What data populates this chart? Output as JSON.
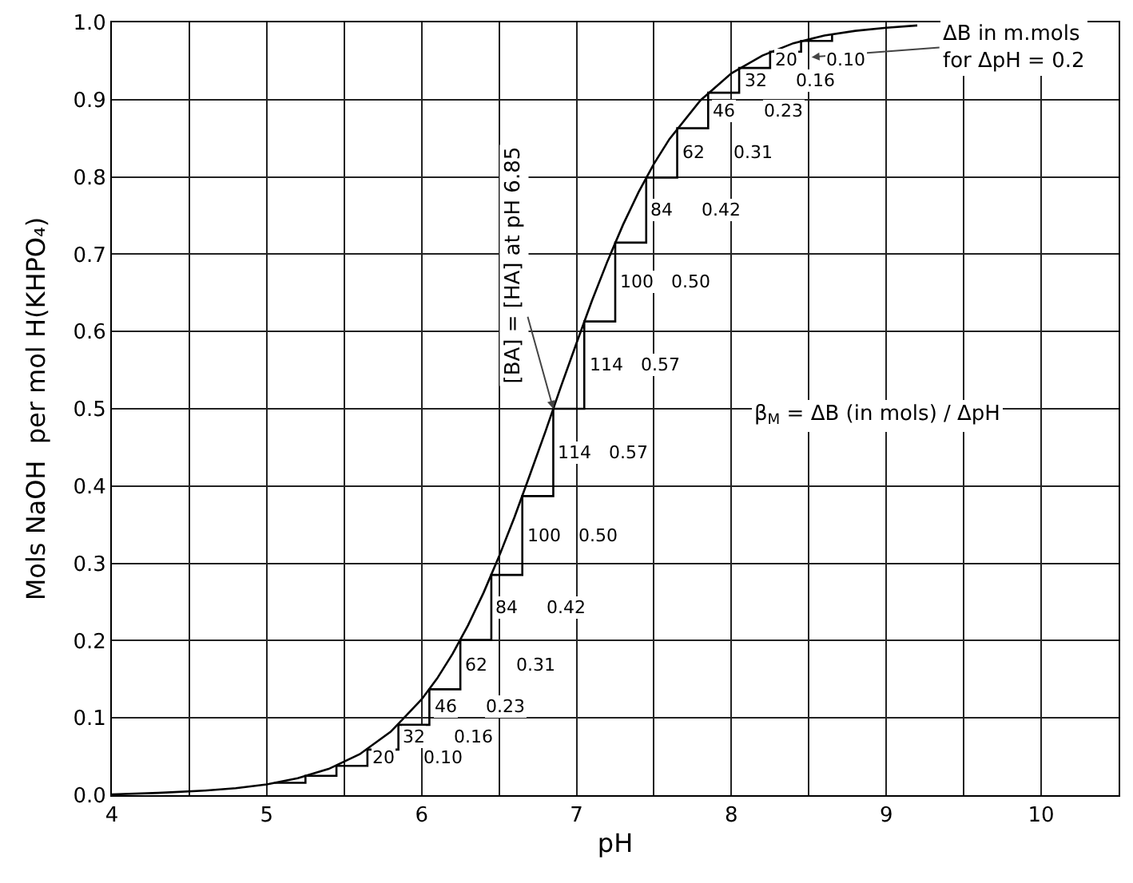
{
  "chart_data": {
    "type": "line",
    "xlabel": "pH",
    "ylabel": "Mols NaOH  per mol H(KHPO₄)",
    "xlim": [
      4,
      10.5
    ],
    "ylim": [
      0,
      1
    ],
    "xticks": [
      4,
      {
        "value": 4.5,
        "label": null
      },
      5,
      {
        "value": 5.5,
        "label": null
      },
      6,
      {
        "value": 6.5,
        "label": null
      },
      7,
      {
        "value": 7.5,
        "label": null
      },
      8,
      {
        "value": 8.5,
        "label": null
      },
      9,
      {
        "value": 9.5,
        "label": null
      },
      10
    ],
    "yticks": [
      {
        "value": 0,
        "label": "0.0"
      },
      0.1,
      0.2,
      0.3,
      0.4,
      0.5,
      0.6,
      0.7,
      0.8,
      0.9,
      {
        "value": 1,
        "label": "1.0"
      }
    ],
    "grid": true,
    "line_style": "solid",
    "marker": "none",
    "series": [
      {
        "type": "line",
        "color": "#000000",
        "x": [
          4.0,
          4.3,
          4.6,
          4.8,
          5.0,
          5.2,
          5.4,
          5.6,
          5.8,
          6.0,
          6.1,
          6.2,
          6.3,
          6.4,
          6.5,
          6.6,
          6.7,
          6.8,
          6.9,
          7.0,
          7.1,
          7.2,
          7.3,
          7.4,
          7.5,
          7.6,
          7.8,
          8.0,
          8.2,
          8.4,
          8.6,
          8.8,
          9.0,
          9.2
        ],
        "values": [
          0.001,
          0.003,
          0.006,
          0.009,
          0.014,
          0.022,
          0.034,
          0.053,
          0.082,
          0.124,
          0.151,
          0.183,
          0.22,
          0.262,
          0.309,
          0.36,
          0.415,
          0.471,
          0.529,
          0.585,
          0.64,
          0.691,
          0.738,
          0.78,
          0.817,
          0.849,
          0.899,
          0.934,
          0.957,
          0.973,
          0.983,
          0.989,
          0.993,
          0.996
        ]
      },
      {
        "type": "step",
        "color": "#000000",
        "x": [
          5.05,
          5.25,
          5.45,
          5.65,
          5.85,
          6.05,
          6.25,
          6.45,
          6.65,
          6.85,
          7.05,
          7.25,
          7.45,
          7.65,
          7.85,
          8.05,
          8.25,
          8.45,
          8.65
        ],
        "values": [
          0.016,
          0.025,
          0.038,
          0.059,
          0.091,
          0.137,
          0.201,
          0.285,
          0.387,
          0.5,
          0.613,
          0.715,
          0.799,
          0.863,
          0.909,
          0.941,
          0.962,
          0.976,
          0.984
        ]
      }
    ],
    "annotations": [
      {
        "text": "[BA] = [HA] at pH 6.85",
        "x": 6.85,
        "y": 0.5
      },
      "ΔB in m.mols\nfor ΔpH = 0.2",
      "β$_{M}$ = ΔB (in mols) / ΔpH",
      "20",
      "0.10",
      "32",
      "0.16",
      "46",
      "0.23",
      "62",
      "0.31",
      "84",
      "0.42",
      "100",
      "0.50",
      "114",
      "0.57",
      "114",
      "0.57",
      "100",
      "0.50",
      "84",
      "0.42",
      "62",
      "0.31",
      "46",
      "0.23",
      "32",
      "0.16",
      "20",
      "0.10"
    ]
  }
}
